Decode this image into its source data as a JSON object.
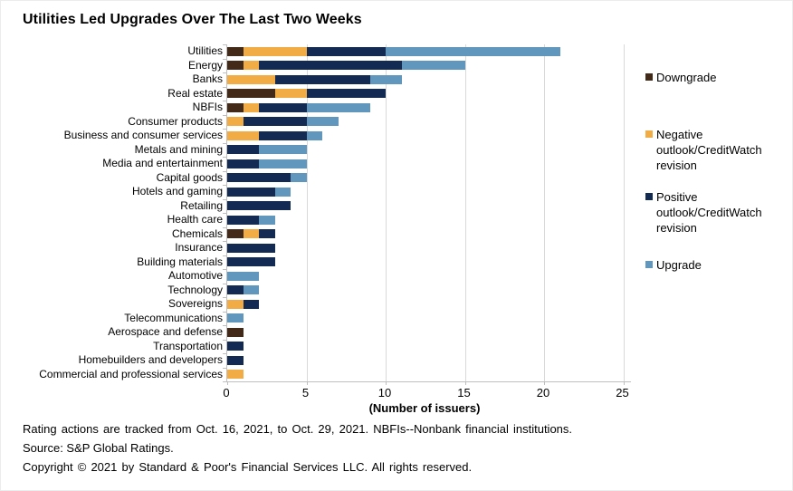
{
  "title": "Utilities Led Upgrades Over The Last Two Weeks",
  "chart_data": {
    "type": "bar",
    "orientation": "horizontal",
    "stacked": true,
    "title": "Utilities Led Upgrades Over The Last Two Weeks",
    "xlabel": "(Number of issuers)",
    "ylabel": "",
    "xlim": [
      0,
      25
    ],
    "xticks": [
      0,
      5,
      10,
      15,
      20,
      25
    ],
    "grid": "vertical",
    "legend_position": "right",
    "categories": [
      "Utilities",
      "Energy",
      "Banks",
      "Real estate",
      "NBFIs",
      "Consumer products",
      "Business and consumer services",
      "Metals and mining",
      "Media and entertainment",
      "Capital goods",
      "Hotels and gaming",
      "Retailing",
      "Health care",
      "Chemicals",
      "Insurance",
      "Building materials",
      "Automotive",
      "Technology",
      "Sovereigns",
      "Telecommunications",
      "Aerospace and defense",
      "Transportation",
      "Homebuilders and developers",
      "Commercial and professional services"
    ],
    "series": [
      {
        "name": "Downgrade",
        "color": "#432918",
        "values": [
          1,
          1,
          0,
          3,
          1,
          0,
          0,
          0,
          0,
          0,
          0,
          0,
          0,
          1,
          0,
          0,
          0,
          0,
          0,
          0,
          1,
          0,
          0,
          0
        ]
      },
      {
        "name": "Negative outlook/CreditWatch revision",
        "color": "#F2AC45",
        "values": [
          4,
          1,
          3,
          2,
          1,
          1,
          2,
          0,
          0,
          0,
          0,
          0,
          0,
          1,
          0,
          0,
          0,
          0,
          1,
          0,
          0,
          0,
          0,
          1
        ]
      },
      {
        "name": "Positive outlook/CreditWatch revision",
        "color": "#132A52",
        "values": [
          5,
          9,
          6,
          5,
          3,
          4,
          3,
          2,
          2,
          4,
          3,
          4,
          2,
          1,
          3,
          3,
          0,
          1,
          1,
          0,
          0,
          1,
          1,
          0
        ]
      },
      {
        "name": "Upgrade",
        "color": "#6297BD",
        "values": [
          11,
          4,
          2,
          0,
          4,
          2,
          1,
          3,
          3,
          1,
          1,
          0,
          1,
          0,
          0,
          0,
          2,
          1,
          0,
          1,
          0,
          0,
          0,
          0
        ]
      }
    ]
  },
  "axis_colors": {
    "gridline": "#d9d9d9",
    "axis": "#bfbfbf"
  },
  "footnotes": {
    "line1": "Rating actions are tracked from Oct. 16, 2021, to Oct. 29, 2021. NBFIs--Nonbank financial institutions.",
    "line2": "Source: S&P Global Ratings.",
    "line3": "Copyright © 2021 by Standard & Poor's Financial Services LLC. All rights reserved."
  }
}
